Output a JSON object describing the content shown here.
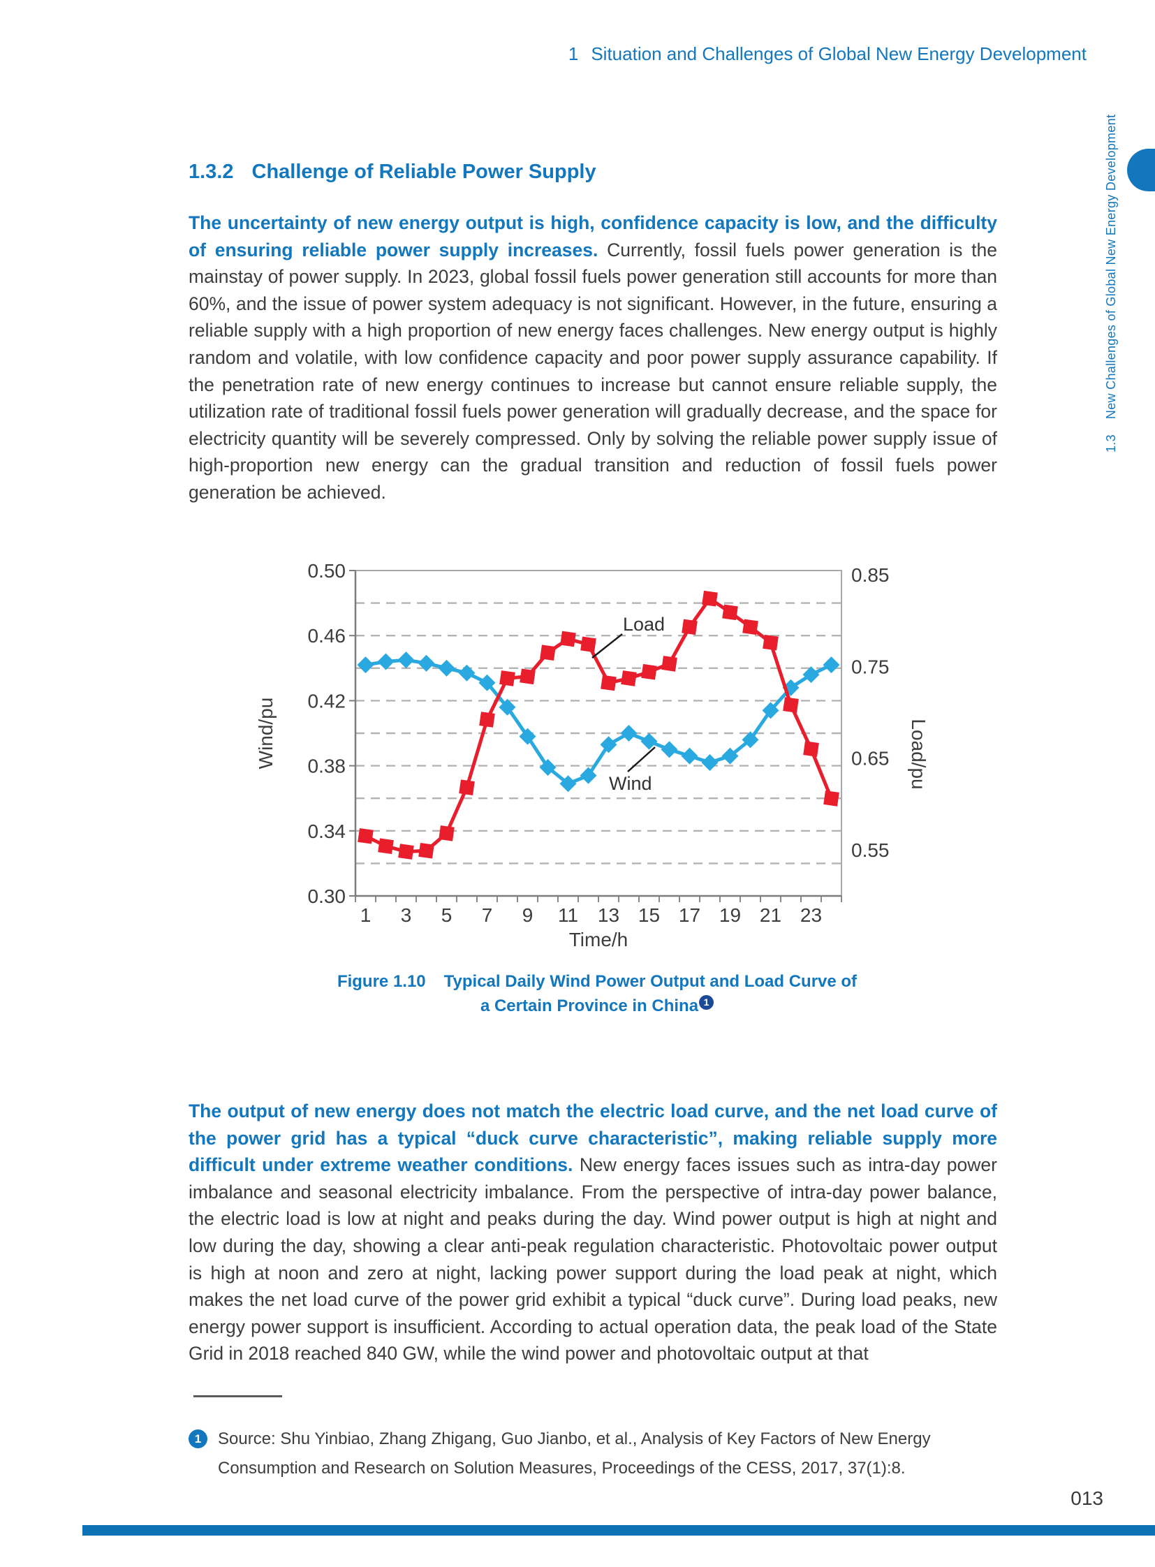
{
  "header": {
    "number": "1",
    "title": "Situation and Challenges of Global New Energy Development"
  },
  "sidebar": {
    "number": "1.3",
    "title": "New Challenges of Global New Energy Development"
  },
  "section": {
    "number": "1.3.2",
    "title": "Challenge of Reliable Power Supply"
  },
  "para1": {
    "bold": "The uncertainty of new energy output is high, confidence capacity is low, and the difficulty of ensuring reliable power supply increases.",
    "rest": "Currently, fossil fuels power generation is the mainstay of power supply. In 2023, global fossil fuels power generation still accounts for more than 60%, and the issue of power system adequacy is not significant. However, in the future, ensuring a reliable supply with a high proportion of new energy faces challenges. New energy output is highly random and volatile, with low confidence capacity and poor power supply assurance capability. If the penetration rate of new energy continues to increase but cannot ensure reliable supply, the utilization rate of traditional fossil fuels power generation will gradually decrease, and the space for electricity quantity will be severely compressed. Only by solving the reliable power supply issue of high-proportion new energy can the gradual transition and reduction of fossil fuels power generation be achieved."
  },
  "figure_caption": {
    "prefix": "Figure 1.10",
    "line1": "Typical Daily Wind Power Output and Load Curve of",
    "line2": "a Certain Province in China",
    "footnote_ref": "1"
  },
  "para2": {
    "bold": "The output of new energy does not match the electric load curve, and the net load curve of the power grid has a typical “duck curve characteristic”, making reliable supply more difficult under extreme weather conditions.",
    "rest": "New energy faces issues such as intra-day power imbalance and seasonal electricity imbalance. From the perspective of intra-day power balance, the electric load is low at night and peaks during the day. Wind power output is high at night and low during the day, showing a clear anti-peak regulation characteristic. Photovoltaic power output is high at noon and zero at night, lacking power support during the load peak at night, which makes the net load curve of the power grid exhibit a typical “duck curve”. During load peaks, new energy power support is insufficient. According to actual operation data, the peak load of the State Grid in 2018 reached 840 GW, while the wind power and photovoltaic output at that"
  },
  "footnote": {
    "marker": "1",
    "text": "Source: Shu Yinbiao, Zhang Zhigang, Guo Jianbo, et al., Analysis of Key Factors of New Energy Consumption and Research on Solution Measures, Proceedings of the CESS, 2017, 37(1):8."
  },
  "page_number": "013",
  "colors": {
    "accent_blue": "#1377bd",
    "body_text": "#3d3d3d",
    "bottom_bar": "#0d72b5",
    "caption_badge": "#1b4a97"
  },
  "chart_data": {
    "type": "line",
    "title": "",
    "x": [
      1,
      2,
      3,
      4,
      5,
      6,
      7,
      8,
      9,
      10,
      11,
      12,
      13,
      14,
      15,
      16,
      17,
      18,
      19,
      20,
      21,
      22,
      23,
      24
    ],
    "series": [
      {
        "name": "Wind",
        "axis": "left",
        "color": "#2aa9e0",
        "marker": "diamond",
        "values": [
          0.442,
          0.444,
          0.445,
          0.443,
          0.44,
          0.437,
          0.431,
          0.416,
          0.398,
          0.379,
          0.369,
          0.374,
          0.393,
          0.4,
          0.395,
          0.39,
          0.386,
          0.382,
          0.386,
          0.396,
          0.414,
          0.428,
          0.436,
          0.442
        ]
      },
      {
        "name": "Load",
        "axis": "right",
        "color": "#e81e2c",
        "marker": "square",
        "values": [
          0.565,
          0.554,
          0.548,
          0.549,
          0.568,
          0.618,
          0.692,
          0.737,
          0.739,
          0.765,
          0.78,
          0.774,
          0.732,
          0.737,
          0.744,
          0.753,
          0.793,
          0.824,
          0.809,
          0.793,
          0.776,
          0.708,
          0.66,
          0.606
        ]
      }
    ],
    "left_axis": {
      "label": "Wind/pu",
      "ticks": [
        0.5,
        0.46,
        0.42,
        0.38,
        0.34,
        0.3
      ],
      "lim": [
        0.3,
        0.5
      ]
    },
    "right_axis": {
      "label": "Load/pu",
      "ticks": [
        0.85,
        0.75,
        0.65,
        0.55
      ],
      "lim": [
        0.4997,
        0.8546
      ]
    },
    "x_axis": {
      "label": "Time/h",
      "tick_labels": [
        1,
        3,
        5,
        7,
        9,
        11,
        13,
        15,
        17,
        19,
        21,
        23
      ]
    },
    "gridlines_left_values": [
      0.32,
      0.34,
      0.36,
      0.38,
      0.4,
      0.42,
      0.44,
      0.46,
      0.48
    ],
    "grid_style": "dashed",
    "legend_position": "inline-annotations",
    "annotations": [
      {
        "text": "Load",
        "tx": 532,
        "ty": 123,
        "lx1": 488,
        "ly1": 162,
        "lx2": 531,
        "ly2": 128
      },
      {
        "text": "Wind",
        "tx": 512,
        "ty": 351,
        "lx1": 539,
        "ly1": 325,
        "lx2": 578,
        "ly2": 290
      }
    ]
  }
}
